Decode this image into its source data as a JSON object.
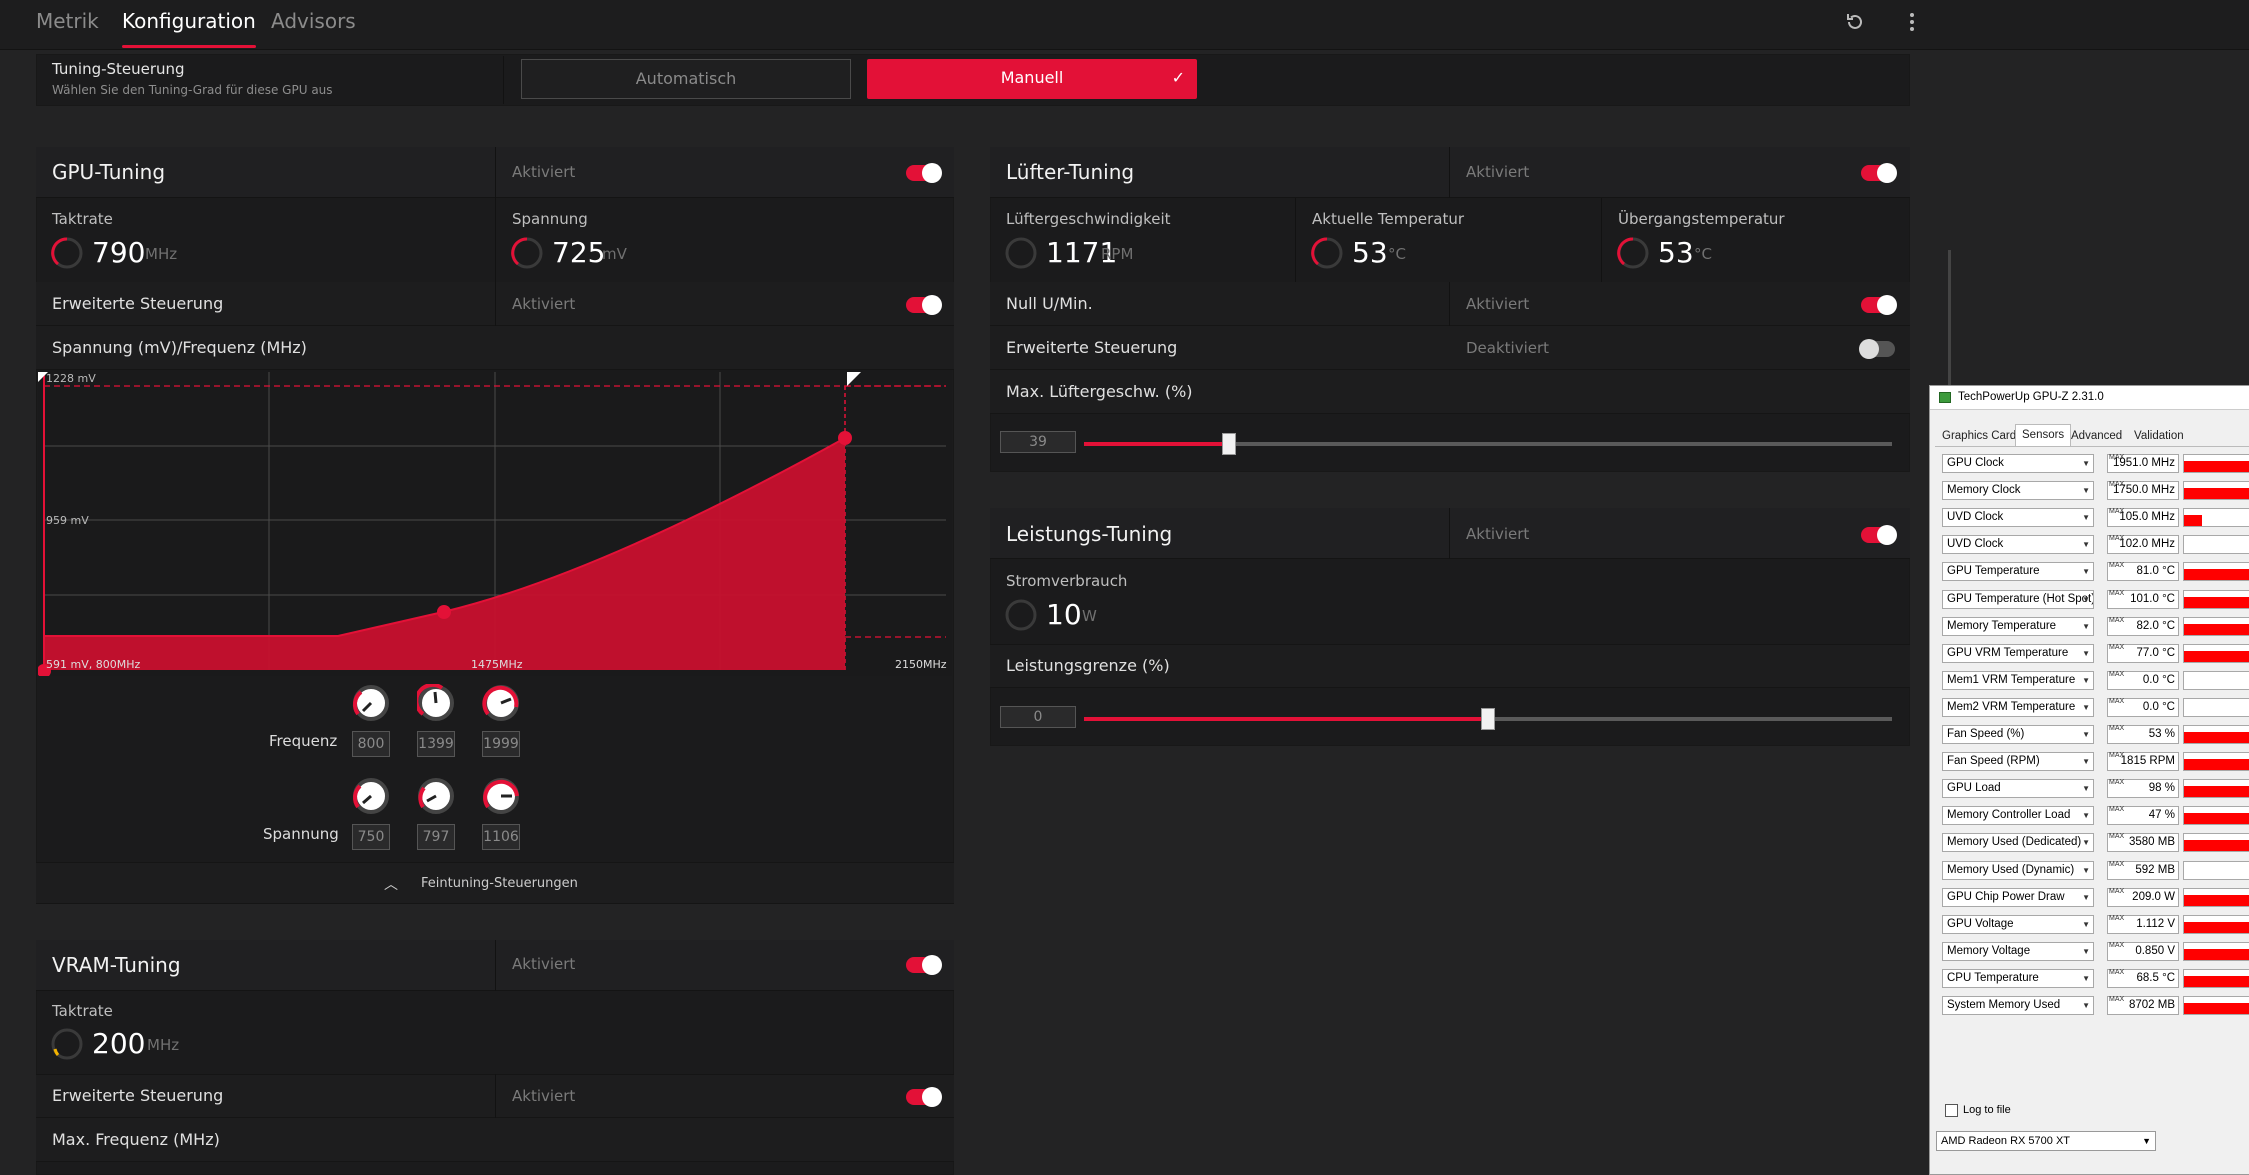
{
  "tabs": [
    {
      "label": "Metrik"
    },
    {
      "label": "Konfiguration"
    },
    {
      "label": "Advisors"
    }
  ],
  "icons": {
    "reset": "reset-icon",
    "more": "more-vertical-icon"
  },
  "tuning_control": {
    "title": "Tuning-Steuerung",
    "subtitle": "Wählen Sie den Tuning-Grad für diese GPU aus",
    "auto_label": "Automatisch",
    "manual_label": "Manuell"
  },
  "gpu_tuning": {
    "title": "GPU-Tuning",
    "status": "Aktiviert",
    "clock_label": "Taktrate",
    "clock_value": "790",
    "clock_unit": "MHz",
    "voltage_label": "Spannung",
    "voltage_value": "725",
    "voltage_unit": "mV",
    "advanced_label": "Erweiterte Steuerung",
    "advanced_status": "Aktiviert",
    "curve_label": "Spannung (mV)/Frequenz (MHz)",
    "chart": {
      "y_top": "1228 mV",
      "y_mid": "959 mV",
      "origin": "591 mV, 800MHz",
      "x_mid": "1475MHz",
      "x_max": "2150MHz"
    },
    "freq_label": "Frequenz",
    "freq_values": [
      "800",
      "1399",
      "1999"
    ],
    "volt_label": "Spannung",
    "volt_values": [
      "750",
      "797",
      "1106"
    ],
    "finetune_label": "Feintuning-Steuerungen"
  },
  "vram_tuning": {
    "title": "VRAM-Tuning",
    "status": "Aktiviert",
    "clock_label": "Taktrate",
    "clock_value": "200",
    "clock_unit": "MHz",
    "advanced_label": "Erweiterte Steuerung",
    "advanced_status": "Aktiviert",
    "max_freq_label": "Max. Frequenz (MHz)"
  },
  "fan_tuning": {
    "title": "Lüfter-Tuning",
    "status": "Aktiviert",
    "speed_label": "Lüftergeschwindigkeit",
    "speed_value": "1171",
    "speed_unit": "RPM",
    "temp_label": "Aktuelle Temperatur",
    "temp_value": "53",
    "temp_unit": "°C",
    "junction_label": "Übergangstemperatur",
    "junction_value": "53",
    "junction_unit": "°C",
    "zero_rpm_label": "Null U/Min.",
    "zero_rpm_status": "Aktiviert",
    "advanced_label": "Erweiterte Steuerung",
    "advanced_status": "Deaktiviert",
    "max_speed_label": "Max. Lüftergeschw. (%)",
    "max_speed_value": "39",
    "max_speed_level": 0.18
  },
  "power_tuning": {
    "title": "Leistungs-Tuning",
    "status": "Aktiviert",
    "power_label": "Stromverbrauch",
    "power_value": "10",
    "power_unit": "W",
    "limit_label": "Leistungsgrenze (%)",
    "limit_value": "0",
    "limit_level": 0.5
  },
  "gpuz": {
    "title": "TechPowerUp GPU-Z 2.31.0",
    "tabs": [
      "Graphics Card",
      "Sensors",
      "Advanced",
      "Validation"
    ],
    "max_label": "MAX",
    "sensors": [
      {
        "name": "GPU Clock",
        "value": "1951.0 MHz"
      },
      {
        "name": "Memory Clock",
        "value": "1750.0 MHz"
      },
      {
        "name": "UVD Clock",
        "value": "105.0 MHz"
      },
      {
        "name": "UVD Clock",
        "value": "102.0 MHz"
      },
      {
        "name": "GPU Temperature",
        "value": "81.0 °C"
      },
      {
        "name": "GPU Temperature (Hot Spot)",
        "value": "101.0 °C"
      },
      {
        "name": "Memory Temperature",
        "value": "82.0 °C"
      },
      {
        "name": "GPU VRM Temperature",
        "value": "77.0 °C"
      },
      {
        "name": "Mem1 VRM Temperature",
        "value": "0.0 °C"
      },
      {
        "name": "Mem2 VRM Temperature",
        "value": "0.0 °C"
      },
      {
        "name": "Fan Speed (%)",
        "value": "53 %"
      },
      {
        "name": "Fan Speed (RPM)",
        "value": "1815 RPM"
      },
      {
        "name": "GPU Load",
        "value": "98 %"
      },
      {
        "name": "Memory Controller Load",
        "value": "47 %"
      },
      {
        "name": "Memory Used (Dedicated)",
        "value": "3580 MB"
      },
      {
        "name": "Memory Used (Dynamic)",
        "value": "592 MB"
      },
      {
        "name": "GPU Chip Power Draw",
        "value": "209.0 W"
      },
      {
        "name": "GPU Voltage",
        "value": "1.112 V"
      },
      {
        "name": "Memory Voltage",
        "value": "0.850 V"
      },
      {
        "name": "CPU Temperature",
        "value": "68.5 °C"
      },
      {
        "name": "System Memory Used",
        "value": "8702 MB"
      }
    ],
    "log_label": "Log to file",
    "device": "AMD Radeon RX 5700 XT"
  }
}
